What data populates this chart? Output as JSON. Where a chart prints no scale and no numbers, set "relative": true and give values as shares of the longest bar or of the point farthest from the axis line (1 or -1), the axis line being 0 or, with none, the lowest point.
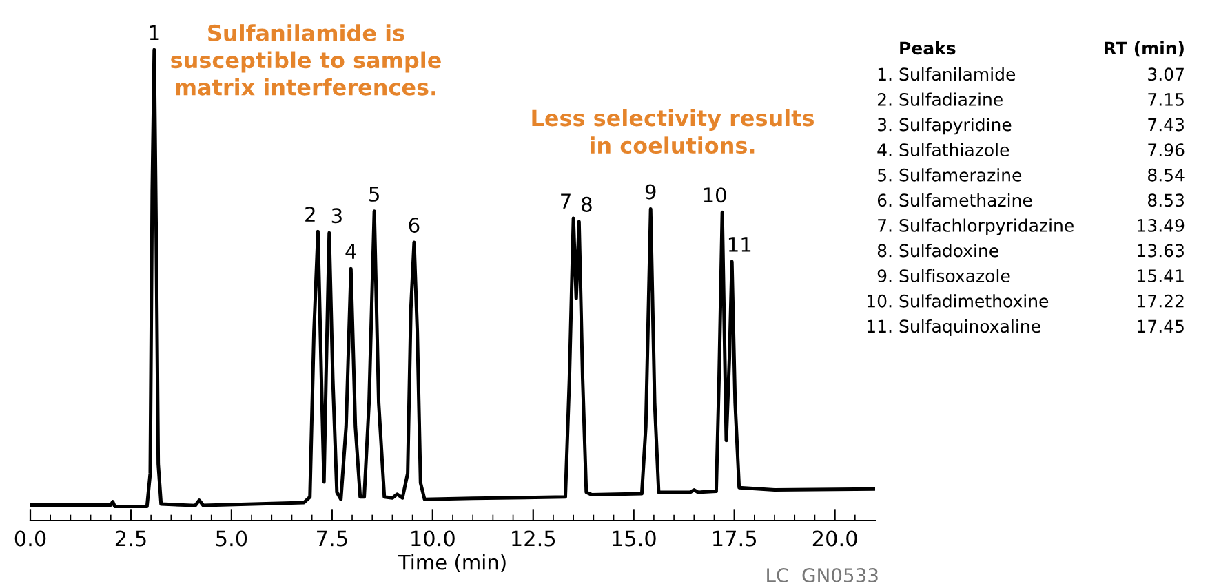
{
  "chart_data": {
    "type": "line",
    "relative": true,
    "xlabel": "Time (min)",
    "xlim": [
      0,
      21
    ],
    "xticks": [
      {
        "value": 0,
        "label": "0.0"
      },
      {
        "value": 0.5,
        "label": null
      },
      {
        "value": 1,
        "label": null
      },
      {
        "value": 1.5,
        "label": null
      },
      {
        "value": 2,
        "label": null
      },
      {
        "value": 2.5,
        "label": "2.5"
      },
      {
        "value": 3,
        "label": null
      },
      {
        "value": 3.5,
        "label": null
      },
      {
        "value": 4,
        "label": null
      },
      {
        "value": 4.5,
        "label": null
      },
      {
        "value": 5,
        "label": "5.0"
      },
      {
        "value": 5.5,
        "label": null
      },
      {
        "value": 6,
        "label": null
      },
      {
        "value": 6.5,
        "label": null
      },
      {
        "value": 7,
        "label": null
      },
      {
        "value": 7.5,
        "label": "7.5"
      },
      {
        "value": 8,
        "label": null
      },
      {
        "value": 8.5,
        "label": null
      },
      {
        "value": 9,
        "label": null
      },
      {
        "value": 9.5,
        "label": null
      },
      {
        "value": 10,
        "label": "10.0"
      },
      {
        "value": 10.5,
        "label": null
      },
      {
        "value": 11,
        "label": null
      },
      {
        "value": 11.5,
        "label": null
      },
      {
        "value": 12,
        "label": null
      },
      {
        "value": 12.5,
        "label": "12.5"
      },
      {
        "value": 13,
        "label": null
      },
      {
        "value": 13.5,
        "label": null
      },
      {
        "value": 14,
        "label": null
      },
      {
        "value": 14.5,
        "label": null
      },
      {
        "value": 15,
        "label": "15.0"
      },
      {
        "value": 15.5,
        "label": null
      },
      {
        "value": 16,
        "label": null
      },
      {
        "value": 16.5,
        "label": null
      },
      {
        "value": 17,
        "label": null
      },
      {
        "value": 17.5,
        "label": "17.5"
      },
      {
        "value": 18,
        "label": null
      },
      {
        "value": 18.5,
        "label": null
      },
      {
        "value": 19,
        "label": null
      },
      {
        "value": 19.5,
        "label": null
      },
      {
        "value": 20,
        "label": "20.0"
      },
      {
        "value": 20.5,
        "label": null
      }
    ],
    "grid": false,
    "marker": "none",
    "line_style": "solid",
    "tick_labels": "x",
    "series": [
      {
        "color": "#000000",
        "x": [
          0,
          2.0,
          2.05,
          2.1,
          2.9,
          2.98,
          3.03,
          3.08,
          3.13,
          3.18,
          3.25,
          4.1,
          4.2,
          4.3,
          6.8,
          6.95,
          7.05,
          7.15,
          7.25,
          7.3,
          7.35,
          7.43,
          7.52,
          7.62,
          7.72,
          7.85,
          7.97,
          8.08,
          8.2,
          8.3,
          8.42,
          8.55,
          8.66,
          8.8,
          9.0,
          9.12,
          9.25,
          9.38,
          9.46,
          9.54,
          9.62,
          9.7,
          9.8,
          11.0,
          13.3,
          13.4,
          13.5,
          13.57,
          13.64,
          13.73,
          13.82,
          13.95,
          15.2,
          15.3,
          15.42,
          15.52,
          15.62,
          16.4,
          16.5,
          16.6,
          17.05,
          17.12,
          17.2,
          17.3,
          17.38,
          17.44,
          17.52,
          17.62,
          18.5,
          20.96
        ],
        "values": [
          0.033,
          0.033,
          0.04,
          0.03,
          0.03,
          0.1,
          0.7,
          1.0,
          0.6,
          0.12,
          0.035,
          0.032,
          0.043,
          0.032,
          0.038,
          0.05,
          0.4,
          0.614,
          0.25,
          0.082,
          0.3,
          0.611,
          0.3,
          0.06,
          0.045,
          0.2,
          0.535,
          0.2,
          0.05,
          0.05,
          0.25,
          0.657,
          0.25,
          0.05,
          0.048,
          0.056,
          0.048,
          0.1,
          0.45,
          0.591,
          0.4,
          0.08,
          0.045,
          0.047,
          0.05,
          0.3,
          0.642,
          0.472,
          0.635,
          0.3,
          0.06,
          0.055,
          0.057,
          0.2,
          0.662,
          0.25,
          0.06,
          0.06,
          0.065,
          0.06,
          0.062,
          0.3,
          0.655,
          0.17,
          0.35,
          0.55,
          0.25,
          0.07,
          0.065,
          0.067
        ]
      }
    ],
    "annotations": [
      "Sulfanilamide is\nsusceptible to sample\nmatrix interferences.",
      "Less selectivity results\nin coelutions.",
      "LC  GN0533",
      "Peaks",
      "RT (min)",
      "1.",
      "Sulfanilamide",
      "3.07",
      "2.",
      "Sulfadiazine",
      "7.15",
      "3.",
      "Sulfapyridine",
      "7.43",
      "4.",
      "Sulfathiazole",
      "7.96",
      "5.",
      "Sulfamerazine",
      "8.54",
      "6.",
      "Sulfamethazine",
      "8.53",
      "7.",
      "Sulfachlorpyridazine",
      "13.49",
      "8.",
      "Sulfadoxine",
      "13.63",
      "9.",
      "Sulfisoxazole",
      "15.41",
      "10.",
      "Sulfadimethoxine",
      "17.22",
      "11.",
      "Sulfaquinoxaline",
      "17.45",
      {
        "text": "1",
        "x": 3.08,
        "y": 1.0
      },
      {
        "text": "2",
        "x": 7.15,
        "y": 0.614
      },
      {
        "text": "3",
        "x": 7.43,
        "y": 0.611
      },
      {
        "text": "4",
        "x": 7.97,
        "y": 0.535
      },
      {
        "text": "5",
        "x": 8.55,
        "y": 0.657
      },
      {
        "text": "6",
        "x": 9.54,
        "y": 0.591
      },
      {
        "text": "7",
        "x": 13.5,
        "y": 0.642
      },
      {
        "text": "8",
        "x": 13.64,
        "y": 0.635
      },
      {
        "text": "9",
        "x": 15.42,
        "y": 0.662
      },
      {
        "text": "10",
        "x": 17.2,
        "y": 0.655
      },
      {
        "text": "11",
        "x": 17.44,
        "y": 0.55
      }
    ]
  }
}
